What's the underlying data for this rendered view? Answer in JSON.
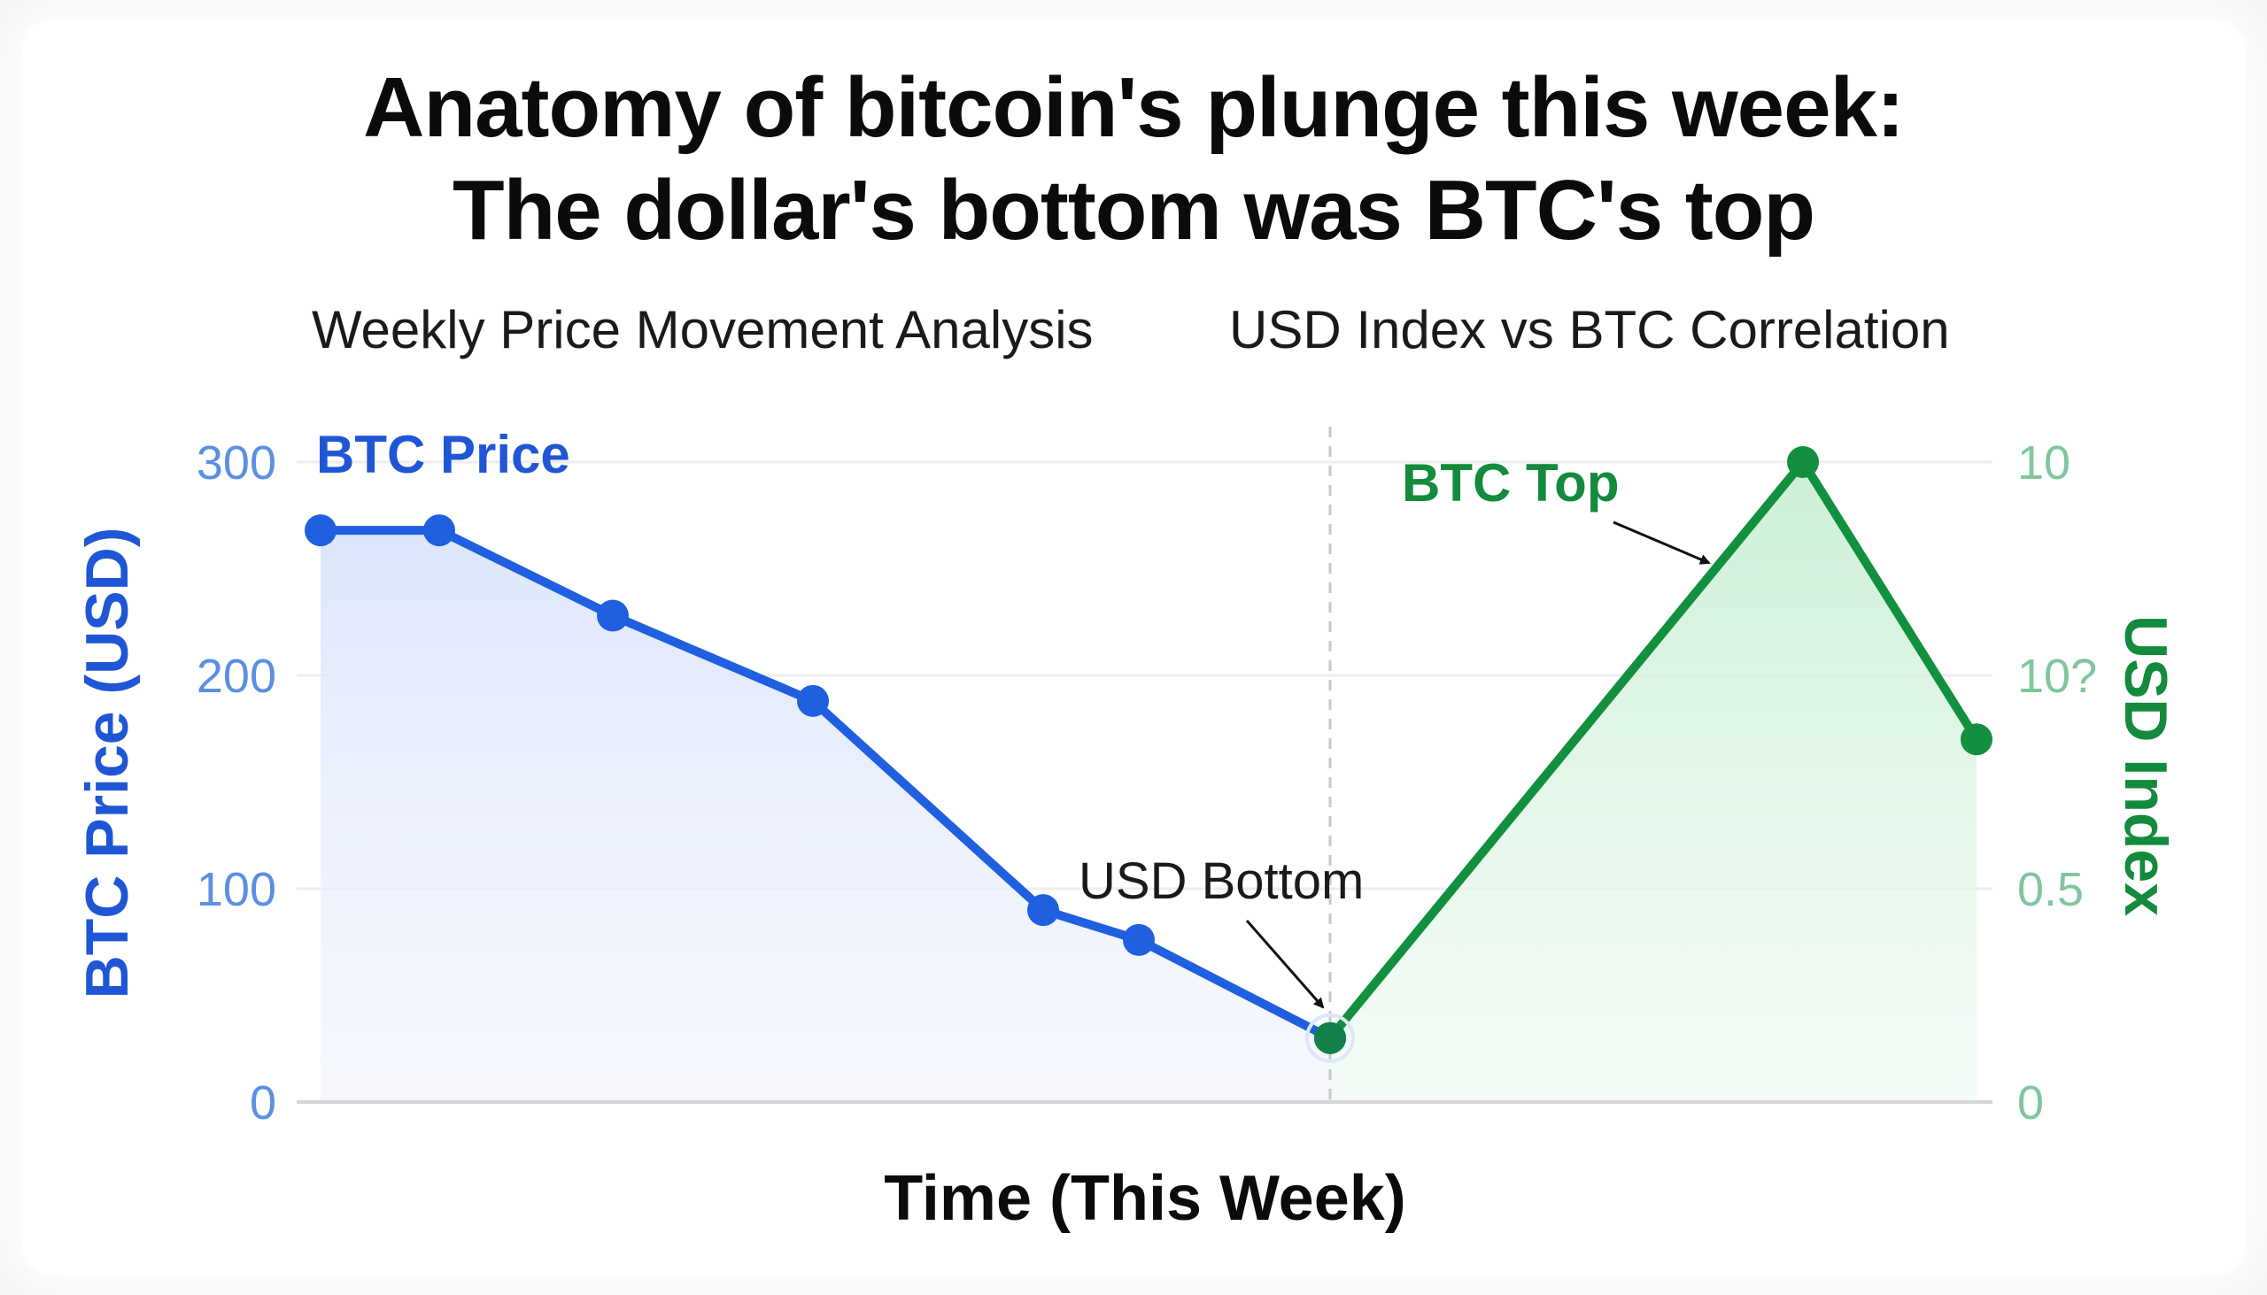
{
  "title_line1": "Anatomy of bitcoin's plunge this week:",
  "title_line2": "The dollar's bottom was BTC's top",
  "subtitle_left": "Weekly Price Movement Analysis",
  "subtitle_right": "USD Index vs BTC Correlation",
  "chart_data": {
    "type": "line",
    "xlabel": "Time (This Week)",
    "ylabel": "BTC Price (USD)",
    "ylabel_right": "USD Index",
    "ylim": [
      0,
      300
    ],
    "grid": true,
    "left_ticks": [
      "0",
      "100",
      "200",
      "300"
    ],
    "right_ticks": [
      "0",
      "0.5",
      "10?",
      "10"
    ],
    "series": [
      {
        "name": "BTC Price",
        "color": "#1f5fe0",
        "x": [
          0,
          1,
          2,
          3,
          4,
          5,
          6
        ],
        "y": [
          268,
          268,
          228,
          188,
          90,
          76,
          30
        ]
      },
      {
        "name": "",
        "color": "#12903f",
        "x": [
          6,
          7,
          8
        ],
        "y": [
          30,
          300,
          170
        ]
      }
    ],
    "x_positions": [
      0,
      1,
      2.5,
      3.5,
      5,
      5.5,
      7,
      9.5,
      10.4
    ],
    "annotations": [
      {
        "text": "USD Bottom",
        "point_index": 6
      },
      {
        "text": "BTC Top",
        "point_index": 7
      }
    ]
  }
}
